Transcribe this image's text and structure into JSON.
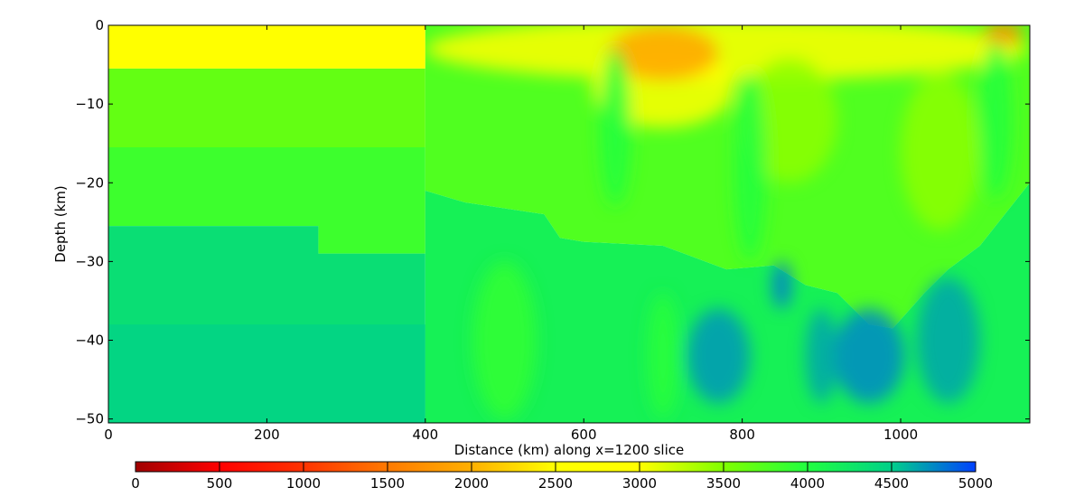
{
  "chart_data": {
    "type": "heatmap",
    "xlabel": "Distance (km) along x=1200 slice",
    "ylabel": "Depth (km)",
    "xlim": [
      0,
      1163
    ],
    "ylim": [
      -50.5,
      0
    ],
    "xticks": [
      0,
      200,
      400,
      600,
      800,
      1000
    ],
    "yticks": [
      0,
      -10,
      -20,
      -30,
      -40,
      -50
    ],
    "colorbar": {
      "ticks": [
        0,
        500,
        1000,
        1500,
        2000,
        2500,
        3000,
        3500,
        4000,
        4500,
        5000
      ],
      "range": [
        0,
        5000
      ],
      "colors": [
        [
          0,
          "#a00000"
        ],
        [
          500,
          "#ff0000"
        ],
        [
          1000,
          "#ff3300"
        ],
        [
          1500,
          "#ff7a00"
        ],
        [
          2000,
          "#ffb000"
        ],
        [
          2500,
          "#ffff00"
        ],
        [
          3000,
          "#ffff00"
        ],
        [
          3500,
          "#80ff00"
        ],
        [
          4000,
          "#20ff40"
        ],
        [
          4500,
          "#00d08a"
        ],
        [
          5000,
          "#0040ff"
        ]
      ]
    },
    "regions": [
      {
        "value": 2900,
        "poly": [
          [
            0,
            0
          ],
          [
            400,
            0
          ],
          [
            400,
            -5.5
          ],
          [
            0,
            -5.5
          ]
        ]
      },
      {
        "value": 3650,
        "poly": [
          [
            0,
            -5.5
          ],
          [
            400,
            -5.5
          ],
          [
            400,
            -15.5
          ],
          [
            0,
            -15.5
          ]
        ]
      },
      {
        "value": 3850,
        "poly": [
          [
            0,
            -15.5
          ],
          [
            400,
            -15.5
          ],
          [
            400,
            -29
          ],
          [
            265,
            -29
          ],
          [
            265,
            -25.5
          ],
          [
            0,
            -25.5
          ]
        ]
      },
      {
        "value": 4350,
        "poly": [
          [
            0,
            -25.5
          ],
          [
            265,
            -25.5
          ],
          [
            265,
            -29
          ],
          [
            400,
            -29
          ],
          [
            400,
            -50.5
          ],
          [
            0,
            -50.5
          ]
        ]
      },
      {
        "value": 4450,
        "poly": [
          [
            0,
            -38
          ],
          [
            400,
            -38
          ],
          [
            400,
            -50.5
          ],
          [
            0,
            -50.5
          ]
        ]
      },
      {
        "value": 3750,
        "poly": [
          [
            400,
            0
          ],
          [
            1163,
            0
          ],
          [
            1163,
            -20
          ],
          [
            1100,
            -28
          ],
          [
            1060,
            -31
          ],
          [
            1030,
            -34
          ],
          [
            990,
            -38.5
          ],
          [
            960,
            -38
          ],
          [
            920,
            -34
          ],
          [
            880,
            -33
          ],
          [
            840,
            -30.5
          ],
          [
            780,
            -31
          ],
          [
            700,
            -28
          ],
          [
            600,
            -27.5
          ],
          [
            570,
            -27
          ],
          [
            550,
            -24
          ],
          [
            450,
            -22.5
          ],
          [
            400,
            -21
          ]
        ]
      },
      {
        "value": 4150,
        "poly": [
          [
            400,
            -21
          ],
          [
            450,
            -22.5
          ],
          [
            550,
            -24
          ],
          [
            570,
            -27
          ],
          [
            600,
            -27.5
          ],
          [
            700,
            -28
          ],
          [
            780,
            -31
          ],
          [
            840,
            -30.5
          ],
          [
            880,
            -33
          ],
          [
            920,
            -34
          ],
          [
            960,
            -38
          ],
          [
            990,
            -38.5
          ],
          [
            1030,
            -34
          ],
          [
            1060,
            -31
          ],
          [
            1100,
            -28
          ],
          [
            1163,
            -20
          ],
          [
            1163,
            -50.5
          ],
          [
            400,
            -50.5
          ]
        ]
      }
    ],
    "anomalies": [
      {
        "value": 2900,
        "cx": 780,
        "cy": -3,
        "rx": 380,
        "ry": 4
      },
      {
        "value": 2950,
        "cx": 700,
        "cy": -8,
        "rx": 90,
        "ry": 5
      },
      {
        "value": 1900,
        "cx": 700,
        "cy": -3.5,
        "rx": 70,
        "ry": 3.5
      },
      {
        "value": 1700,
        "cx": 1130,
        "cy": -1,
        "rx": 25,
        "ry": 1.5
      },
      {
        "value": 3450,
        "cx": 860,
        "cy": -12,
        "rx": 60,
        "ry": 8
      },
      {
        "value": 3450,
        "cx": 1050,
        "cy": -16,
        "rx": 50,
        "ry": 10
      },
      {
        "value": 4000,
        "cx": 640,
        "cy": -13,
        "rx": 20,
        "ry": 10
      },
      {
        "value": 4000,
        "cx": 810,
        "cy": -18,
        "rx": 20,
        "ry": 12
      },
      {
        "value": 4000,
        "cx": 1120,
        "cy": -12,
        "rx": 20,
        "ry": 10
      },
      {
        "value": 4750,
        "cx": 960,
        "cy": -42,
        "rx": 45,
        "ry": 6
      },
      {
        "value": 4800,
        "cx": 850,
        "cy": -33,
        "rx": 12,
        "ry": 3
      },
      {
        "value": 4700,
        "cx": 770,
        "cy": -42,
        "rx": 40,
        "ry": 6
      },
      {
        "value": 4650,
        "cx": 1060,
        "cy": -40,
        "rx": 40,
        "ry": 8
      },
      {
        "value": 4650,
        "cx": 900,
        "cy": -42,
        "rx": 20,
        "ry": 6
      },
      {
        "value": 3900,
        "cx": 500,
        "cy": -40,
        "rx": 40,
        "ry": 10
      },
      {
        "value": 3950,
        "cx": 700,
        "cy": -42,
        "rx": 20,
        "ry": 8
      }
    ]
  }
}
